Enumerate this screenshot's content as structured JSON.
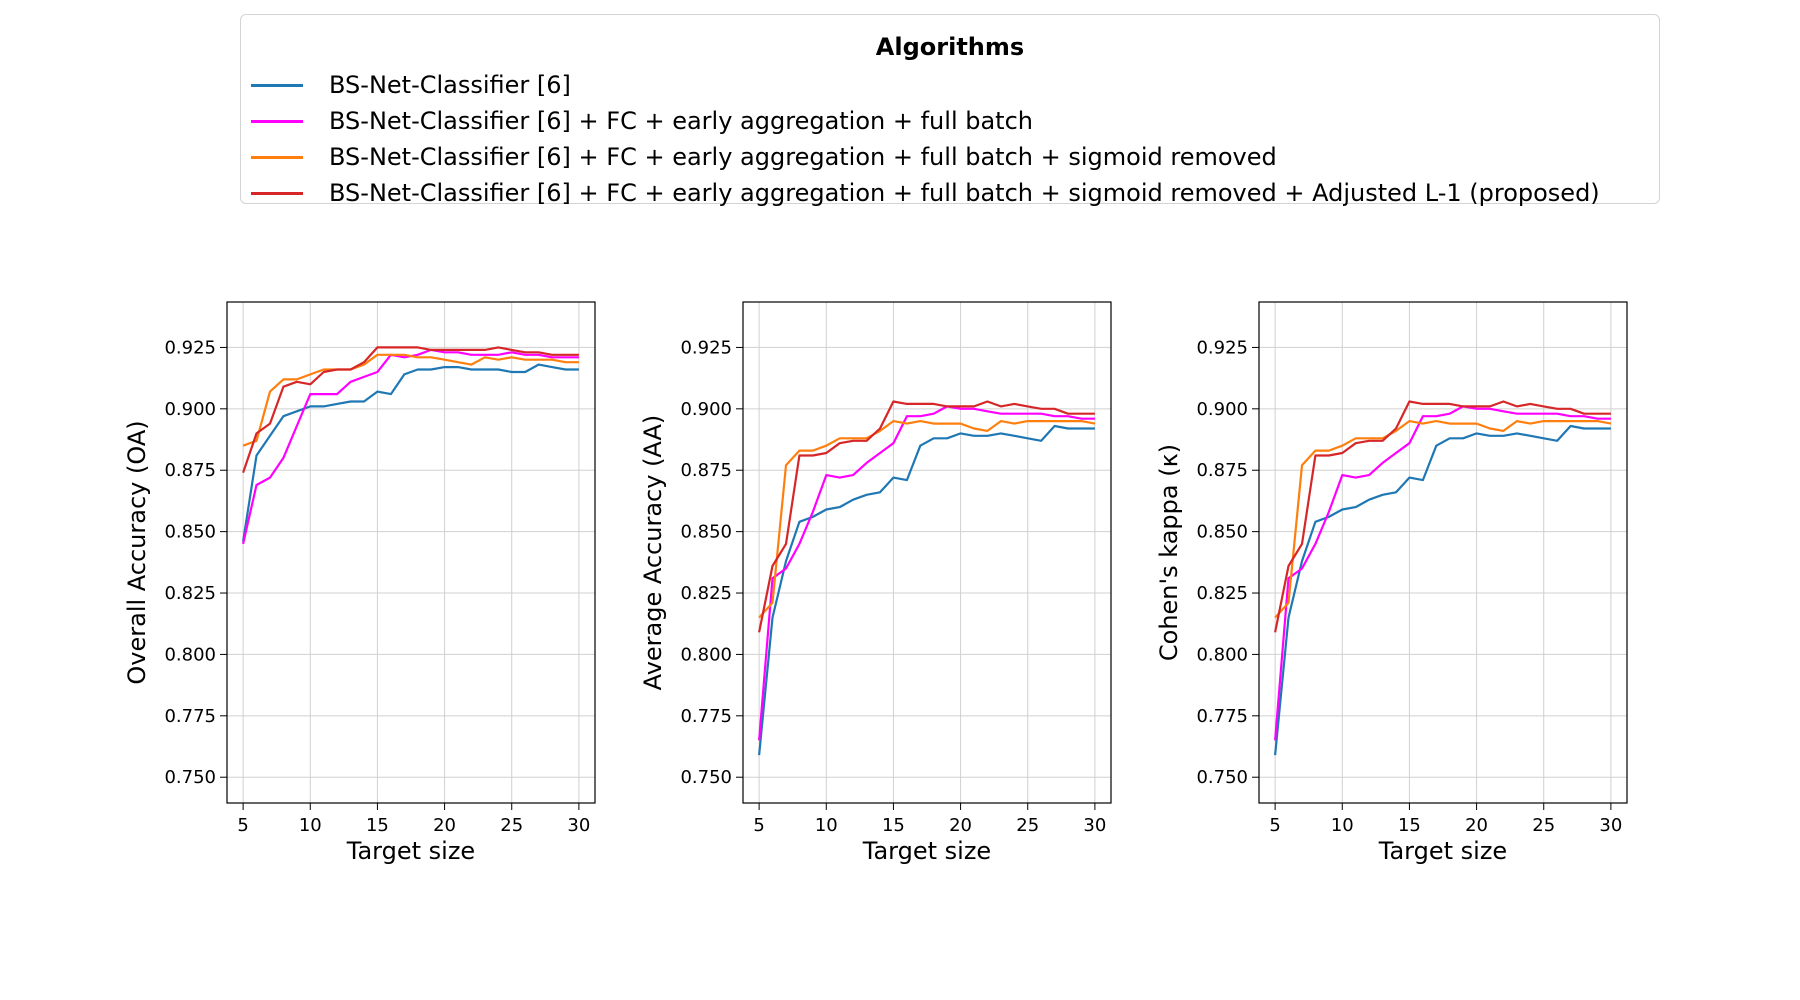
{
  "legend": {
    "title": "Algorithms",
    "items": [
      {
        "label": "BS-Net-Classifier [6]",
        "color": "#1f77b4"
      },
      {
        "label": "BS-Net-Classifier [6] + FC + early aggregation + full batch",
        "color": "#ff00ff"
      },
      {
        "label": "BS-Net-Classifier [6] + FC + early aggregation + full batch + sigmoid removed",
        "color": "#ff7f0e"
      },
      {
        "label": "BS-Net-Classifier [6] + FC + early aggregation + full batch + sigmoid removed + Adjusted L-1 (proposed)",
        "color": "#d62728"
      }
    ]
  },
  "chart_data": [
    {
      "type": "line",
      "title": "",
      "xlabel": "Target size",
      "ylabel": "Overall Accuracy (OA)",
      "xlim": [
        3.8,
        31.2
      ],
      "ylim": [
        0.7395,
        0.9435
      ],
      "xticks": [
        "5",
        "10",
        "15",
        "20",
        "25",
        "30"
      ],
      "yticks": [
        "0.750",
        "0.775",
        "0.800",
        "0.825",
        "0.850",
        "0.875",
        "0.900",
        "0.925"
      ],
      "grid": true,
      "x": [
        5,
        6,
        7,
        8,
        9,
        10,
        11,
        12,
        13,
        14,
        15,
        16,
        17,
        18,
        19,
        20,
        21,
        22,
        23,
        24,
        25,
        26,
        27,
        28,
        29,
        30
      ],
      "series": [
        {
          "name": "BS-Net-Classifier [6]",
          "color": "#1f77b4",
          "values": [
            0.846,
            0.881,
            0.889,
            0.897,
            0.899,
            0.901,
            0.901,
            0.902,
            0.903,
            0.903,
            0.907,
            0.906,
            0.914,
            0.916,
            0.916,
            0.917,
            0.917,
            0.916,
            0.916,
            0.916,
            0.915,
            0.915,
            0.918,
            0.917,
            0.916,
            0.916
          ]
        },
        {
          "name": "BS-Net-Classifier [6] + FC + early aggregation + full batch",
          "color": "#ff00ff",
          "values": [
            0.845,
            0.869,
            0.872,
            0.88,
            0.893,
            0.906,
            0.906,
            0.906,
            0.911,
            0.913,
            0.915,
            0.922,
            0.921,
            0.922,
            0.924,
            0.923,
            0.923,
            0.922,
            0.922,
            0.922,
            0.923,
            0.922,
            0.922,
            0.921,
            0.921,
            0.921
          ]
        },
        {
          "name": "BS-Net-Classifier [6] + FC + early aggregation + full batch + sigmoid removed",
          "color": "#ff7f0e",
          "values": [
            0.885,
            0.887,
            0.907,
            0.912,
            0.912,
            0.914,
            0.916,
            0.916,
            0.916,
            0.918,
            0.922,
            0.922,
            0.922,
            0.921,
            0.921,
            0.92,
            0.919,
            0.918,
            0.921,
            0.92,
            0.921,
            0.92,
            0.92,
            0.92,
            0.919,
            0.919
          ]
        },
        {
          "name": "BS-Net-Classifier [6] + FC + early aggregation + full batch + sigmoid removed + Adjusted L-1 (proposed)",
          "color": "#d62728",
          "values": [
            0.874,
            0.89,
            0.894,
            0.909,
            0.911,
            0.91,
            0.915,
            0.916,
            0.916,
            0.919,
            0.925,
            0.925,
            0.925,
            0.925,
            0.924,
            0.924,
            0.924,
            0.924,
            0.924,
            0.925,
            0.924,
            0.923,
            0.923,
            0.922,
            0.922,
            0.922
          ]
        }
      ]
    },
    {
      "type": "line",
      "title": "",
      "xlabel": "Target size",
      "ylabel": "Average Accuracy (AA)",
      "xlim": [
        3.8,
        31.2
      ],
      "ylim": [
        0.7395,
        0.9435
      ],
      "xticks": [
        "5",
        "10",
        "15",
        "20",
        "25",
        "30"
      ],
      "yticks": [
        "0.750",
        "0.775",
        "0.800",
        "0.825",
        "0.850",
        "0.875",
        "0.900",
        "0.925"
      ],
      "grid": true,
      "x": [
        5,
        6,
        7,
        8,
        9,
        10,
        11,
        12,
        13,
        14,
        15,
        16,
        17,
        18,
        19,
        20,
        21,
        22,
        23,
        24,
        25,
        26,
        27,
        28,
        29,
        30
      ],
      "series": [
        {
          "name": "BS-Net-Classifier [6]",
          "color": "#1f77b4",
          "values": [
            0.759,
            0.815,
            0.838,
            0.854,
            0.856,
            0.859,
            0.86,
            0.863,
            0.865,
            0.866,
            0.872,
            0.871,
            0.885,
            0.888,
            0.888,
            0.89,
            0.889,
            0.889,
            0.89,
            0.889,
            0.888,
            0.887,
            0.893,
            0.892,
            0.892,
            0.892
          ]
        },
        {
          "name": "BS-Net-Classifier [6] + FC + early aggregation + full batch",
          "color": "#ff00ff",
          "values": [
            0.765,
            0.831,
            0.835,
            0.845,
            0.858,
            0.873,
            0.872,
            0.873,
            0.878,
            0.882,
            0.886,
            0.897,
            0.897,
            0.898,
            0.901,
            0.9,
            0.9,
            0.899,
            0.898,
            0.898,
            0.898,
            0.898,
            0.897,
            0.897,
            0.896,
            0.896
          ]
        },
        {
          "name": "BS-Net-Classifier [6] + FC + early aggregation + full batch + sigmoid removed",
          "color": "#ff7f0e",
          "values": [
            0.815,
            0.821,
            0.877,
            0.883,
            0.883,
            0.885,
            0.888,
            0.888,
            0.888,
            0.891,
            0.895,
            0.894,
            0.895,
            0.894,
            0.894,
            0.894,
            0.892,
            0.891,
            0.895,
            0.894,
            0.895,
            0.895,
            0.895,
            0.895,
            0.895,
            0.894
          ]
        },
        {
          "name": "BS-Net-Classifier [6] + FC + early aggregation + full batch + sigmoid removed + Adjusted L-1 (proposed)",
          "color": "#d62728",
          "values": [
            0.809,
            0.836,
            0.845,
            0.881,
            0.881,
            0.882,
            0.886,
            0.887,
            0.887,
            0.892,
            0.903,
            0.902,
            0.902,
            0.902,
            0.901,
            0.901,
            0.901,
            0.903,
            0.901,
            0.902,
            0.901,
            0.9,
            0.9,
            0.898,
            0.898,
            0.898
          ]
        }
      ]
    },
    {
      "type": "line",
      "title": "",
      "xlabel": "Target size",
      "ylabel": "Cohen's kappa (κ)",
      "xlim": [
        3.8,
        31.2
      ],
      "ylim": [
        0.7395,
        0.9435
      ],
      "xticks": [
        "5",
        "10",
        "15",
        "20",
        "25",
        "30"
      ],
      "yticks": [
        "0.750",
        "0.775",
        "0.800",
        "0.825",
        "0.850",
        "0.875",
        "0.900",
        "0.925"
      ],
      "grid": true,
      "x": [
        5,
        6,
        7,
        8,
        9,
        10,
        11,
        12,
        13,
        14,
        15,
        16,
        17,
        18,
        19,
        20,
        21,
        22,
        23,
        24,
        25,
        26,
        27,
        28,
        29,
        30
      ],
      "series": [
        {
          "name": "BS-Net-Classifier [6]",
          "color": "#1f77b4",
          "values": [
            0.759,
            0.815,
            0.838,
            0.854,
            0.856,
            0.859,
            0.86,
            0.863,
            0.865,
            0.866,
            0.872,
            0.871,
            0.885,
            0.888,
            0.888,
            0.89,
            0.889,
            0.889,
            0.89,
            0.889,
            0.888,
            0.887,
            0.893,
            0.892,
            0.892,
            0.892
          ]
        },
        {
          "name": "BS-Net-Classifier [6] + FC + early aggregation + full batch",
          "color": "#ff00ff",
          "values": [
            0.765,
            0.831,
            0.835,
            0.845,
            0.858,
            0.873,
            0.872,
            0.873,
            0.878,
            0.882,
            0.886,
            0.897,
            0.897,
            0.898,
            0.901,
            0.9,
            0.9,
            0.899,
            0.898,
            0.898,
            0.898,
            0.898,
            0.897,
            0.897,
            0.896,
            0.896
          ]
        },
        {
          "name": "BS-Net-Classifier [6] + FC + early aggregation + full batch + sigmoid removed",
          "color": "#ff7f0e",
          "values": [
            0.815,
            0.821,
            0.877,
            0.883,
            0.883,
            0.885,
            0.888,
            0.888,
            0.888,
            0.891,
            0.895,
            0.894,
            0.895,
            0.894,
            0.894,
            0.894,
            0.892,
            0.891,
            0.895,
            0.894,
            0.895,
            0.895,
            0.895,
            0.895,
            0.895,
            0.894
          ]
        },
        {
          "name": "BS-Net-Classifier [6] + FC + early aggregation + full batch + sigmoid removed + Adjusted L-1 (proposed)",
          "color": "#d62728",
          "values": [
            0.809,
            0.836,
            0.845,
            0.881,
            0.881,
            0.882,
            0.886,
            0.887,
            0.887,
            0.892,
            0.903,
            0.902,
            0.902,
            0.902,
            0.901,
            0.901,
            0.901,
            0.903,
            0.901,
            0.902,
            0.901,
            0.9,
            0.9,
            0.898,
            0.898,
            0.898
          ]
        }
      ]
    }
  ]
}
